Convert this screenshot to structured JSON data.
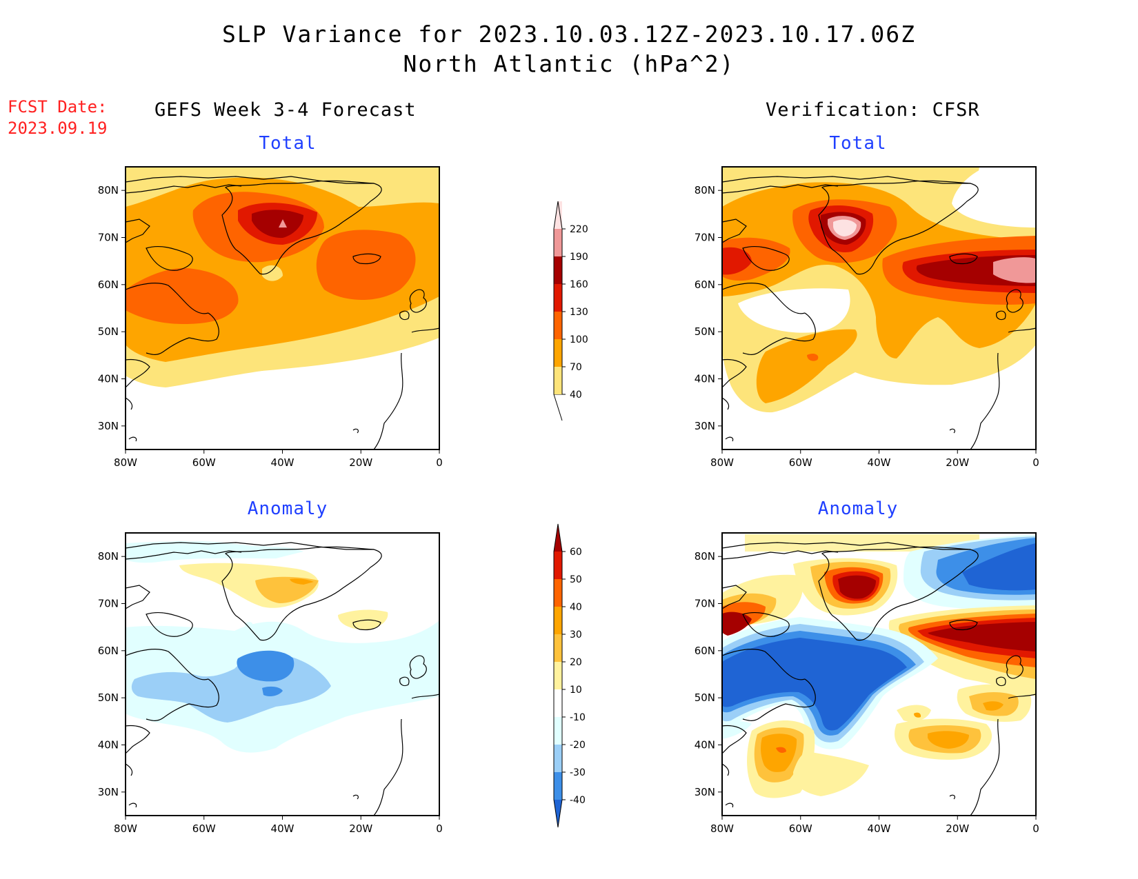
{
  "title": {
    "line1": "SLP Variance for 2023.10.03.12Z-2023.10.17.06Z",
    "line2": "North Atlantic (hPa^2)"
  },
  "fcst_date": {
    "label": "FCST Date:",
    "value": "2023.09.19"
  },
  "column_titles": {
    "left": "GEFS Week 3-4 Forecast",
    "right": "Verification: CFSR"
  },
  "panel_titles": {
    "total": "Total",
    "anomaly": "Anomaly"
  },
  "axes": {
    "lon_labels": [
      "80W",
      "60W",
      "40W",
      "20W",
      "0"
    ],
    "lat_labels": [
      "80N",
      "70N",
      "60N",
      "50N",
      "40N",
      "30N"
    ]
  },
  "colorbars": {
    "total": {
      "levels": [
        "40",
        "70",
        "100",
        "130",
        "160",
        "190",
        "220"
      ],
      "colors": [
        "#fde47a",
        "#fea500",
        "#fe6400",
        "#e11800",
        "#a50000",
        "#f09898",
        "#fde2e2"
      ]
    },
    "anomaly": {
      "levels": [
        "60",
        "50",
        "40",
        "30",
        "20",
        "10",
        "-10",
        "-20",
        "-30",
        "-40"
      ],
      "colors": [
        "#a50000",
        "#e11800",
        "#fe6400",
        "#fea500",
        "#fec23c",
        "#fff29e",
        "#ffffff",
        "#e1ffff",
        "#9bcff7",
        "#3d8fe8",
        "#1f64d4"
      ]
    }
  },
  "chart_data": [
    {
      "type": "heatmap",
      "title": "Total",
      "subtitle": "GEFS Week 3-4 Forecast",
      "xlim": [
        "80W",
        "0"
      ],
      "ylim": [
        "25N",
        "85N"
      ]
    },
    {
      "type": "heatmap",
      "title": "Total",
      "subtitle": "Verification: CFSR",
      "xlim": [
        "80W",
        "0"
      ],
      "ylim": [
        "25N",
        "85N"
      ]
    },
    {
      "type": "heatmap",
      "title": "Anomaly",
      "subtitle": "GEFS Week 3-4 Forecast",
      "xlim": [
        "80W",
        "0"
      ],
      "ylim": [
        "25N",
        "85N"
      ]
    },
    {
      "type": "heatmap",
      "title": "Anomaly",
      "subtitle": "Verification: CFSR",
      "xlim": [
        "80W",
        "0"
      ],
      "ylim": [
        "25N",
        "85N"
      ]
    }
  ]
}
